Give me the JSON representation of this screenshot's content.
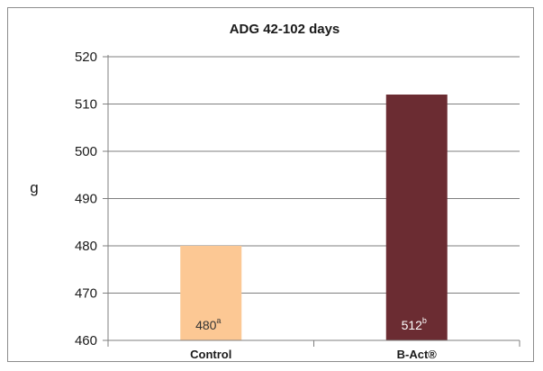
{
  "chart_data": {
    "type": "bar",
    "title": "ADG 42-102 days",
    "xlabel": "",
    "ylabel": "g",
    "ylim": [
      460,
      520
    ],
    "yticks": [
      460,
      470,
      480,
      490,
      500,
      510,
      520
    ],
    "grid": true,
    "categories": [
      "Control",
      "B-Act®"
    ],
    "values": [
      480,
      512
    ],
    "data_labels": [
      "480",
      "512"
    ],
    "superscripts": [
      "a",
      "b"
    ],
    "colors": [
      "#fcc894",
      "#6b2c32"
    ],
    "label_colors": [
      "#333333",
      "#ffffff"
    ]
  }
}
